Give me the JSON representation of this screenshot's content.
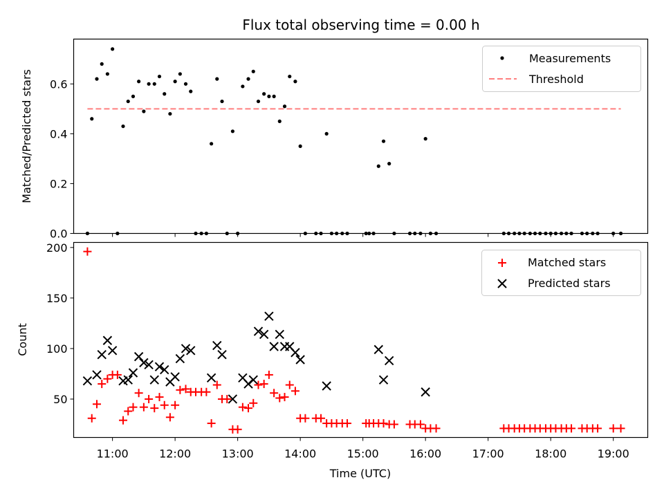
{
  "title": "Flux total observing time = 0.00 h",
  "colors": {
    "measurements": "#000000",
    "threshold": "#ff7f7f",
    "matched": "#ff0000",
    "predicted": "#000000"
  },
  "chart_data": [
    {
      "type": "scatter",
      "ylabel": "Matched/Predicted stars",
      "xlim": [
        10.38,
        19.55
      ],
      "ylim": [
        0,
        0.78
      ],
      "yticks": [
        0.0,
        0.2,
        0.4,
        0.6
      ],
      "ytick_labels": [
        "0.0",
        "0.2",
        "0.4",
        "0.6"
      ],
      "grid": false,
      "legend": "upper right",
      "series": [
        {
          "name": "Measurements",
          "marker": "dot",
          "x": [
            10.6,
            10.67,
            10.75,
            10.83,
            10.92,
            11.0,
            11.08,
            11.17,
            11.25,
            11.33,
            11.42,
            11.5,
            11.58,
            11.67,
            11.75,
            11.83,
            11.92,
            12.0,
            12.08,
            12.17,
            12.25,
            12.33,
            12.42,
            12.5,
            12.58,
            12.67,
            12.75,
            12.83,
            12.92,
            13.0,
            13.08,
            13.17,
            13.25,
            13.33,
            13.42,
            13.5,
            13.58,
            13.67,
            13.75,
            13.83,
            13.92,
            14.0,
            14.08,
            14.25,
            14.33,
            14.42,
            14.5,
            14.58,
            14.67,
            14.75,
            15.05,
            15.1,
            15.17,
            15.25,
            15.33,
            15.42,
            15.5,
            15.75,
            15.83,
            15.92,
            16.0,
            16.08,
            16.17,
            17.25,
            17.33,
            17.42,
            17.5,
            17.58,
            17.67,
            17.75,
            17.83,
            17.92,
            18.0,
            18.08,
            18.17,
            18.25,
            18.33,
            18.5,
            18.58,
            18.67,
            18.75,
            19.0,
            19.12
          ],
          "y": [
            0.0,
            0.46,
            0.62,
            0.68,
            0.64,
            0.74,
            0.0,
            0.43,
            0.53,
            0.55,
            0.61,
            0.49,
            0.6,
            0.6,
            0.63,
            0.56,
            0.48,
            0.61,
            0.64,
            0.6,
            0.57,
            0.0,
            0.0,
            0.0,
            0.36,
            0.62,
            0.53,
            0.0,
            0.41,
            0.0,
            0.59,
            0.62,
            0.65,
            0.53,
            0.56,
            0.55,
            0.55,
            0.45,
            0.51,
            0.63,
            0.61,
            0.35,
            0.0,
            0.0,
            0.0,
            0.4,
            0.0,
            0.0,
            0.0,
            0.0,
            0.0,
            0.0,
            0.0,
            0.27,
            0.37,
            0.28,
            0.0,
            0.0,
            0.0,
            0.0,
            0.38,
            0.0,
            0.0,
            0.0,
            0.0,
            0.0,
            0.0,
            0.0,
            0.0,
            0.0,
            0.0,
            0.0,
            0.0,
            0.0,
            0.0,
            0.0,
            0.0,
            0.0,
            0.0,
            0.0,
            0.0,
            0.0,
            0.0
          ]
        },
        {
          "name": "Threshold",
          "style": "dashed",
          "x": [
            10.6,
            19.12
          ],
          "y": [
            0.5,
            0.5
          ]
        }
      ]
    },
    {
      "type": "scatter",
      "xlabel": "Time (UTC)",
      "ylabel": "Count",
      "xlim": [
        10.38,
        19.55
      ],
      "ylim": [
        12,
        205
      ],
      "xticks": [
        11,
        12,
        13,
        14,
        15,
        16,
        17,
        18,
        19
      ],
      "xtick_labels": [
        "11:00",
        "12:00",
        "13:00",
        "14:00",
        "15:00",
        "16:00",
        "17:00",
        "18:00",
        "19:00"
      ],
      "yticks": [
        50,
        100,
        150,
        200
      ],
      "ytick_labels": [
        "50",
        "100",
        "150",
        "200"
      ],
      "grid": false,
      "legend": "upper right",
      "series": [
        {
          "name": "Matched stars",
          "marker": "plus",
          "x": [
            10.6,
            10.67,
            10.75,
            10.83,
            10.92,
            11.0,
            11.08,
            11.17,
            11.25,
            11.33,
            11.42,
            11.5,
            11.58,
            11.67,
            11.75,
            11.83,
            11.92,
            12.0,
            12.08,
            12.17,
            12.25,
            12.33,
            12.42,
            12.5,
            12.58,
            12.67,
            12.75,
            12.83,
            12.92,
            13.0,
            13.08,
            13.17,
            13.25,
            13.33,
            13.42,
            13.5,
            13.58,
            13.67,
            13.75,
            13.83,
            13.92,
            14.0,
            14.08,
            14.25,
            14.33,
            14.42,
            14.5,
            14.58,
            14.67,
            14.75,
            15.05,
            15.1,
            15.17,
            15.25,
            15.33,
            15.42,
            15.5,
            15.75,
            15.83,
            15.92,
            16.0,
            16.08,
            16.17,
            17.25,
            17.33,
            17.42,
            17.5,
            17.58,
            17.67,
            17.75,
            17.83,
            17.92,
            18.0,
            18.08,
            18.17,
            18.25,
            18.33,
            18.5,
            18.58,
            18.67,
            18.75,
            19.0,
            19.12
          ],
          "y": [
            196,
            31,
            45,
            65,
            70,
            74,
            74,
            29,
            38,
            42,
            56,
            42,
            50,
            41,
            52,
            44,
            32,
            44,
            59,
            60,
            57,
            57,
            57,
            57,
            26,
            64,
            50,
            50,
            20,
            20,
            42,
            41,
            46,
            64,
            65,
            74,
            56,
            51,
            52,
            64,
            58,
            31,
            31,
            31,
            31,
            26,
            26,
            26,
            26,
            26,
            26,
            26,
            26,
            26,
            26,
            25,
            25,
            25,
            25,
            25,
            21,
            21,
            21,
            21,
            21,
            21,
            21,
            21,
            21,
            21,
            21,
            21,
            21,
            21,
            21,
            21,
            21,
            21,
            21,
            21,
            21,
            21,
            21
          ]
        },
        {
          "name": "Predicted stars",
          "marker": "x",
          "x": [
            10.6,
            10.75,
            10.83,
            10.92,
            11.0,
            11.17,
            11.25,
            11.33,
            11.42,
            11.5,
            11.58,
            11.67,
            11.75,
            11.83,
            11.92,
            12.0,
            12.08,
            12.17,
            12.25,
            12.58,
            12.67,
            12.75,
            12.92,
            13.08,
            13.17,
            13.25,
            13.33,
            13.42,
            13.5,
            13.58,
            13.67,
            13.75,
            13.83,
            13.92,
            14.0,
            14.42,
            15.25,
            15.33,
            15.42,
            16.0
          ],
          "y": [
            68,
            74,
            94,
            108,
            98,
            68,
            69,
            76,
            92,
            86,
            84,
            69,
            82,
            79,
            67,
            72,
            90,
            100,
            98,
            71,
            103,
            94,
            50,
            71,
            65,
            69,
            117,
            114,
            132,
            102,
            114,
            102,
            102,
            96,
            89,
            63,
            99,
            69,
            88,
            57
          ]
        }
      ]
    }
  ]
}
